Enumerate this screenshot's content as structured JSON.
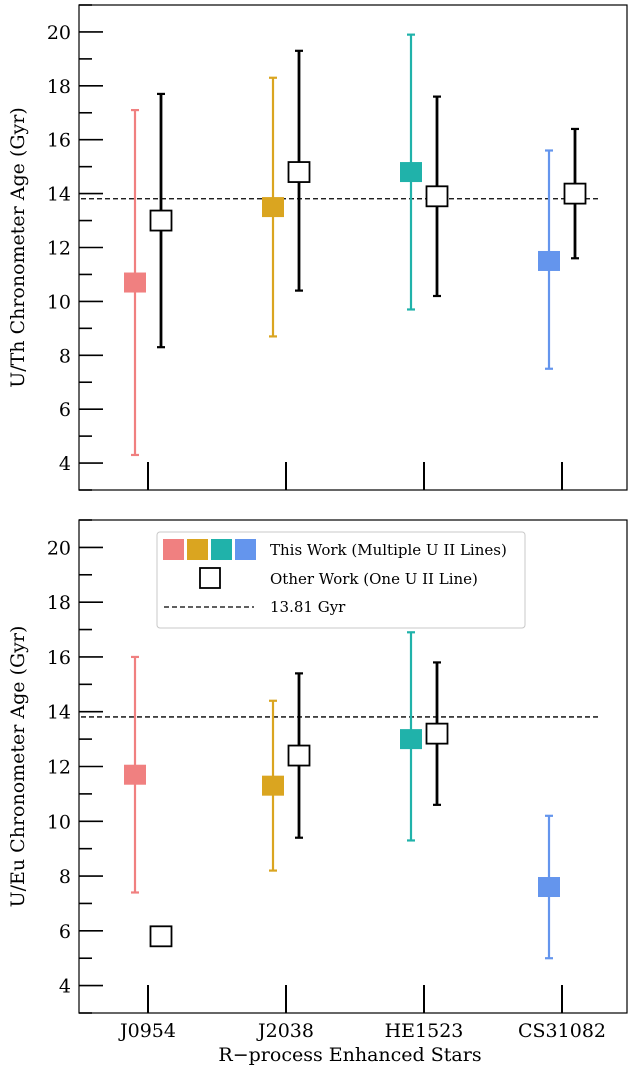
{
  "chart_data": [
    {
      "type": "scatter",
      "panel": "top",
      "categories": [
        "J0954",
        "J2038",
        "HE1523",
        "CS31082"
      ],
      "ylabel": "U/Th Chronometer Age (Gyr)",
      "xlabel": "",
      "ylim": [
        3,
        21
      ],
      "yticks": [
        4,
        6,
        8,
        10,
        12,
        14,
        16,
        18,
        20
      ],
      "reference_line": 13.81,
      "series": [
        {
          "name": "This Work (Multiple U II Lines)",
          "marker": "filled-square",
          "colors": [
            "#f08080",
            "#daa520",
            "#20b2aa",
            "#6495ed"
          ],
          "values": [
            10.7,
            13.5,
            14.8,
            11.5
          ],
          "err_low": [
            4.3,
            8.7,
            9.7,
            7.5
          ],
          "err_high": [
            17.1,
            18.3,
            19.9,
            15.6
          ]
        },
        {
          "name": "Other Work (One U II Line)",
          "marker": "open-square",
          "colors": [
            "#000000",
            "#000000",
            "#000000",
            "#000000"
          ],
          "values": [
            13.0,
            14.8,
            13.9,
            14.0
          ],
          "err_low": [
            8.3,
            10.4,
            10.2,
            11.6
          ],
          "err_high": [
            17.7,
            19.3,
            17.6,
            16.4
          ]
        }
      ]
    },
    {
      "type": "scatter",
      "panel": "bottom",
      "categories": [
        "J0954",
        "J2038",
        "HE1523",
        "CS31082"
      ],
      "ylabel": "U/Eu Chronometer Age (Gyr)",
      "xlabel": "R−process Enhanced Stars",
      "ylim": [
        3,
        21
      ],
      "yticks": [
        4,
        6,
        8,
        10,
        12,
        14,
        16,
        18,
        20
      ],
      "reference_line": 13.81,
      "series": [
        {
          "name": "This Work (Multiple U II Lines)",
          "marker": "filled-square",
          "colors": [
            "#f08080",
            "#daa520",
            "#20b2aa",
            "#6495ed"
          ],
          "values": [
            11.7,
            11.3,
            13.0,
            7.6
          ],
          "err_low": [
            7.4,
            8.2,
            9.3,
            5.0
          ],
          "err_high": [
            16.0,
            14.4,
            16.9,
            10.2
          ]
        },
        {
          "name": "Other Work (One U II Line)",
          "marker": "open-square",
          "colors": [
            "#000000",
            "#000000",
            "#000000",
            "#000000"
          ],
          "values": [
            5.8,
            12.4,
            13.2,
            null
          ],
          "err_low": [
            null,
            9.4,
            10.6,
            null
          ],
          "err_high": [
            null,
            15.4,
            15.8,
            null
          ]
        }
      ],
      "legend": {
        "placement": "top",
        "entries": [
          {
            "label": "This Work (Multiple U II Lines)",
            "swatch": "filled-squares",
            "colors": [
              "#f08080",
              "#daa520",
              "#20b2aa",
              "#6495ed"
            ]
          },
          {
            "label": "Other Work (One U II Line)",
            "swatch": "open-square"
          },
          {
            "label": "13.81 Gyr",
            "swatch": "dashed-line"
          }
        ]
      }
    }
  ]
}
